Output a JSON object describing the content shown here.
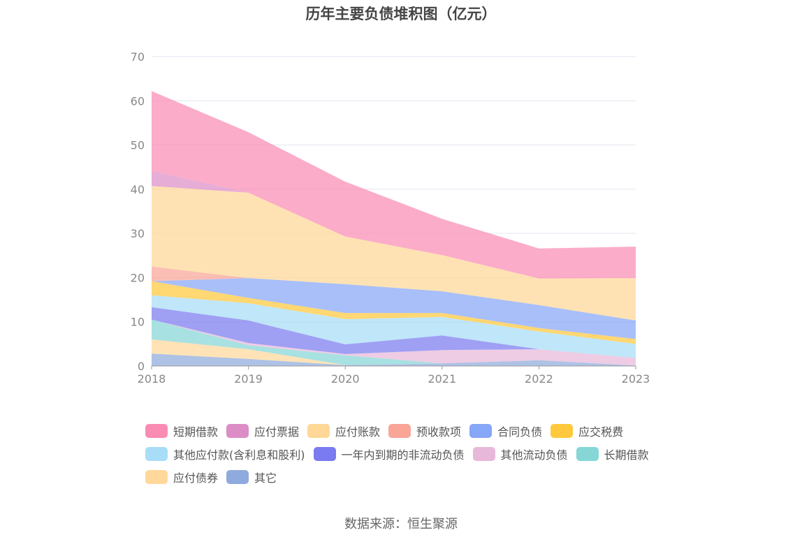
{
  "chart_data": {
    "type": "area",
    "stacked": true,
    "title": "历年主要负债堆积图（亿元）",
    "x": [
      "2018",
      "2019",
      "2020",
      "2021",
      "2022",
      "2023"
    ],
    "ylim": [
      0,
      70
    ],
    "yticks": [
      0,
      10,
      20,
      30,
      40,
      50,
      60,
      70
    ],
    "grid": true,
    "legend_position": "bottom",
    "series": [
      {
        "name": "其它",
        "color": "#8FAADC",
        "values": [
          2.8,
          1.6,
          0.2,
          0.6,
          1.3,
          0.1
        ]
      },
      {
        "name": "应付债券",
        "color": "#FFD89A",
        "values": [
          3.2,
          2.2,
          0.0,
          0.0,
          0.0,
          0.0
        ]
      },
      {
        "name": "长期借款",
        "color": "#86D6D6",
        "values": [
          4.5,
          0.9,
          2.2,
          0.0,
          0.0,
          0.0
        ]
      },
      {
        "name": "其他流动负债",
        "color": "#E8B8DA",
        "values": [
          0.0,
          0.5,
          0.3,
          3.0,
          2.5,
          1.7
        ]
      },
      {
        "name": "一年内到期的非流动负债",
        "color": "#7A7BF0",
        "values": [
          2.8,
          5.1,
          2.2,
          3.3,
          0.0,
          0.0
        ]
      },
      {
        "name": "其他应付款(含利息和股利)",
        "color": "#A8DDF7",
        "values": [
          2.7,
          3.9,
          5.7,
          4.2,
          4.0,
          3.2
        ]
      },
      {
        "name": "应交税费",
        "color": "#FFC83D",
        "values": [
          3.2,
          1.2,
          1.4,
          0.9,
          0.8,
          1.1
        ]
      },
      {
        "name": "合同负债",
        "color": "#86A6F7",
        "values": [
          0.0,
          4.5,
          6.5,
          4.9,
          5.2,
          4.2
        ]
      },
      {
        "name": "预收款项",
        "color": "#F9A597",
        "values": [
          3.3,
          0.0,
          0.0,
          0.0,
          0.0,
          0.0
        ]
      },
      {
        "name": "应付账款",
        "color": "#FFD796",
        "values": [
          18.2,
          19.3,
          10.8,
          8.2,
          6.0,
          9.6
        ]
      },
      {
        "name": "应付票据",
        "color": "#DC8DC6",
        "values": [
          3.4,
          0.0,
          0.0,
          0.0,
          0.0,
          0.0
        ]
      },
      {
        "name": "短期借款",
        "color": "#FA8CB4",
        "values": [
          18.1,
          13.7,
          12.4,
          8.2,
          6.8,
          7.1
        ]
      }
    ]
  },
  "legend": [
    {
      "label": "短期借款",
      "color": "#FA8CB4"
    },
    {
      "label": "应付票据",
      "color": "#DC8DC6"
    },
    {
      "label": "应付账款",
      "color": "#FFD796"
    },
    {
      "label": "预收款项",
      "color": "#F9A597"
    },
    {
      "label": "合同负债",
      "color": "#86A6F7"
    },
    {
      "label": "应交税费",
      "color": "#FFC83D"
    },
    {
      "label": "其他应付款(含利息和股利)",
      "color": "#A8DDF7"
    },
    {
      "label": "一年内到期的非流动负债",
      "color": "#7A7BF0"
    },
    {
      "label": "其他流动负债",
      "color": "#E8B8DA"
    },
    {
      "label": "长期借款",
      "color": "#86D6D6"
    },
    {
      "label": "应付债券",
      "color": "#FFD89A"
    },
    {
      "label": "其它",
      "color": "#8FAADC"
    }
  ],
  "source": "数据来源：恒生聚源"
}
